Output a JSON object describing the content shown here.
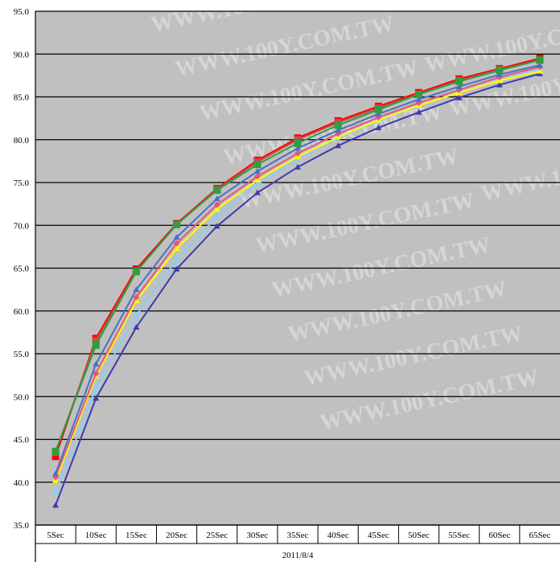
{
  "chart_data": {
    "type": "line",
    "title": "",
    "xlabel": "2011/8/4",
    "ylabel": "",
    "categories": [
      "5Sec",
      "10Sec",
      "15Sec",
      "20Sec",
      "25Sec",
      "30Sec",
      "35Sec",
      "40Sec",
      "45Sec",
      "50Sec",
      "55Sec",
      "60Sec",
      "65Sec"
    ],
    "y_ticks": [
      "35.0",
      "40.0",
      "45.0",
      "50.0",
      "55.0",
      "60.0",
      "65.0",
      "70.0",
      "75.0",
      "80.0",
      "85.0",
      "90.0",
      "95.0"
    ],
    "ylim": [
      35,
      95
    ],
    "grid": "horizontal",
    "legend": "none",
    "plot_background": "#c0c0c0",
    "watermark": "WWW.100Y.COM.TW",
    "series": [
      {
        "color": "#3b3bb0",
        "marker": "triangle",
        "values": [
          37.3,
          49.8,
          58.1,
          64.9,
          69.9,
          73.8,
          76.8,
          79.3,
          81.4,
          83.2,
          84.9,
          86.4,
          87.7
        ]
      },
      {
        "color": "#87cefa",
        "marker": "diamond",
        "values": [
          38.8,
          51.0,
          59.5,
          66.0,
          71.0,
          74.8,
          77.8,
          80.2,
          82.2,
          84.0,
          85.5,
          87.0,
          88.2
        ]
      },
      {
        "color": "#ffff00",
        "marker": "triangle",
        "values": [
          40.2,
          52.4,
          61.2,
          67.3,
          71.9,
          75.3,
          78.0,
          80.3,
          82.3,
          84.0,
          85.5,
          86.9,
          88.0
        ]
      },
      {
        "color": "#e75480",
        "marker": "diamond",
        "values": [
          40.6,
          52.7,
          61.6,
          67.9,
          72.4,
          75.7,
          78.4,
          80.7,
          82.6,
          84.3,
          85.8,
          87.3,
          88.5
        ]
      },
      {
        "color": "#4472c4",
        "marker": "triangle",
        "values": [
          41.0,
          53.8,
          62.5,
          68.6,
          73.1,
          76.3,
          79.0,
          81.1,
          83.0,
          84.7,
          86.2,
          87.6,
          88.7
        ]
      },
      {
        "color": "#ff0000",
        "marker": "square",
        "values": [
          43.0,
          56.8,
          64.9,
          70.2,
          74.3,
          77.6,
          80.2,
          82.2,
          83.9,
          85.5,
          87.1,
          88.3,
          89.5
        ]
      },
      {
        "color": "#c0504d",
        "marker": "square",
        "values": [
          43.5,
          56.5,
          64.6,
          70.1,
          74.2,
          77.4,
          80.0,
          82.0,
          83.7,
          85.3,
          86.9,
          88.2,
          89.3
        ]
      },
      {
        "color": "#2e9e3e",
        "marker": "square",
        "values": [
          43.6,
          56.0,
          64.6,
          70.1,
          74.1,
          77.1,
          79.6,
          81.7,
          83.5,
          85.3,
          86.8,
          88.1,
          89.3
        ]
      }
    ]
  }
}
